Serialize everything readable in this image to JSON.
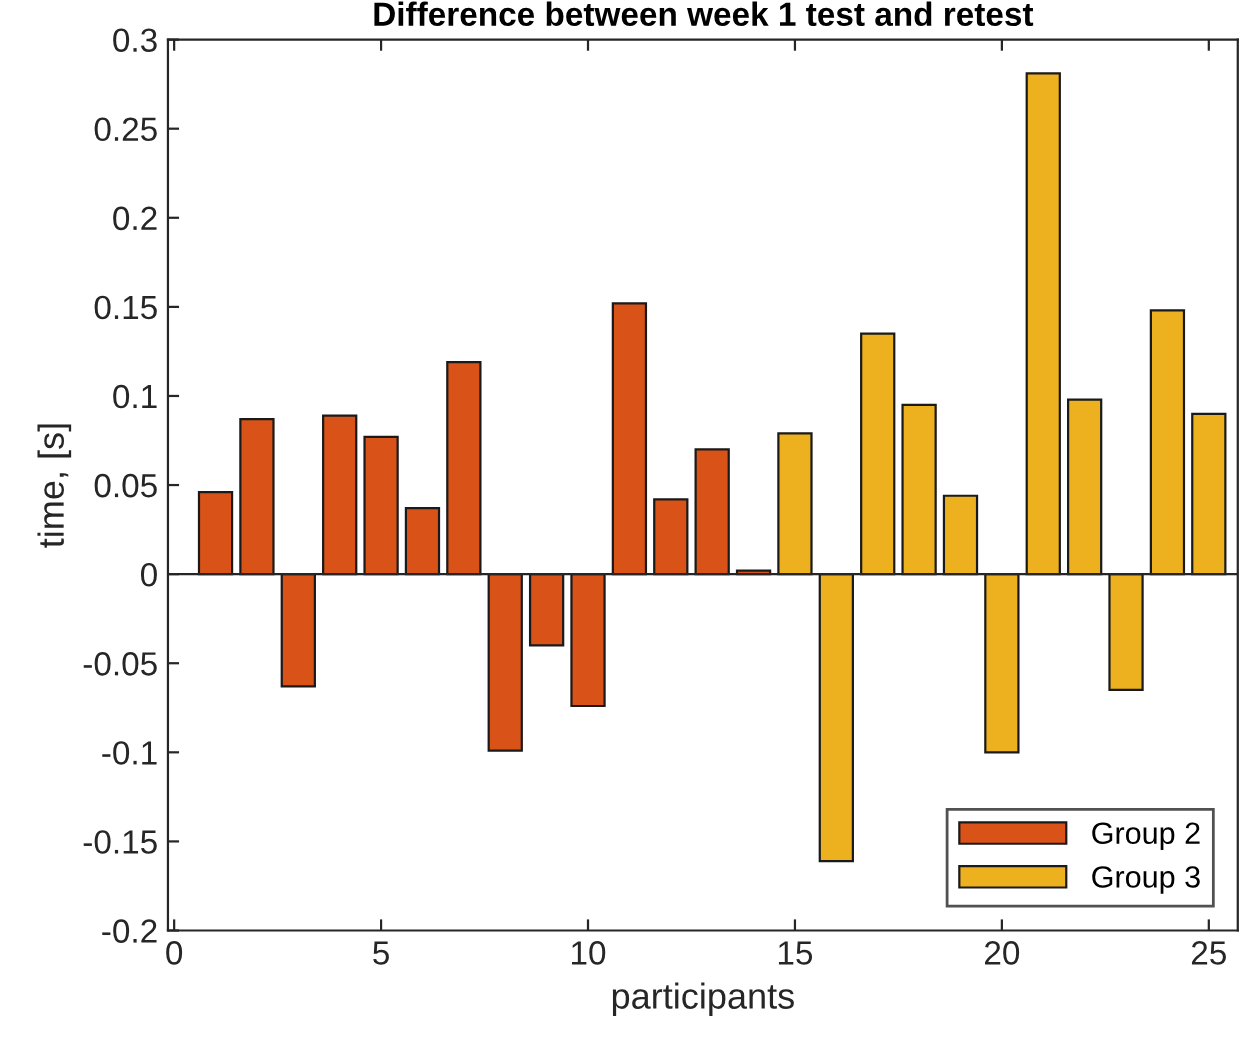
{
  "chart_data": {
    "type": "bar",
    "title": "Difference between week 1 test and retest",
    "xlabel": "participants",
    "ylabel": "time, [s]",
    "x": [
      1,
      2,
      3,
      4,
      5,
      6,
      7,
      8,
      9,
      10,
      11,
      12,
      13,
      14,
      15,
      16,
      17,
      18,
      19,
      20,
      21,
      22,
      23,
      24,
      25
    ],
    "series": [
      {
        "name": "Group 2",
        "color": "#d95319",
        "values": [
          0.046,
          0.087,
          -0.063,
          0.089,
          0.077,
          0.037,
          0.119,
          -0.099,
          -0.04,
          -0.074,
          0.152,
          0.042,
          0.07,
          0.002,
          null,
          null,
          null,
          null,
          null,
          null,
          null,
          null,
          null,
          null,
          null
        ]
      },
      {
        "name": "Group 3",
        "color": "#edb120",
        "values": [
          null,
          null,
          null,
          null,
          null,
          null,
          null,
          null,
          null,
          null,
          null,
          null,
          null,
          null,
          0.079,
          -0.161,
          0.135,
          0.095,
          0.044,
          -0.1,
          0.281,
          0.098,
          -0.065,
          0.148,
          0.09
        ]
      }
    ],
    "xlim": [
      -0.15,
      25.7
    ],
    "xticks": [
      0,
      5,
      10,
      15,
      20,
      25
    ],
    "ylim": [
      -0.2,
      0.3
    ],
    "yticks": [
      -0.2,
      -0.15,
      -0.1,
      -0.05,
      0,
      0.05,
      0.1,
      0.15,
      0.2,
      0.25,
      0.3
    ],
    "ref_lines": [
      {
        "axis": "y",
        "value": 0,
        "color": "#262626"
      }
    ],
    "grid": false,
    "legend": "bottom right"
  }
}
